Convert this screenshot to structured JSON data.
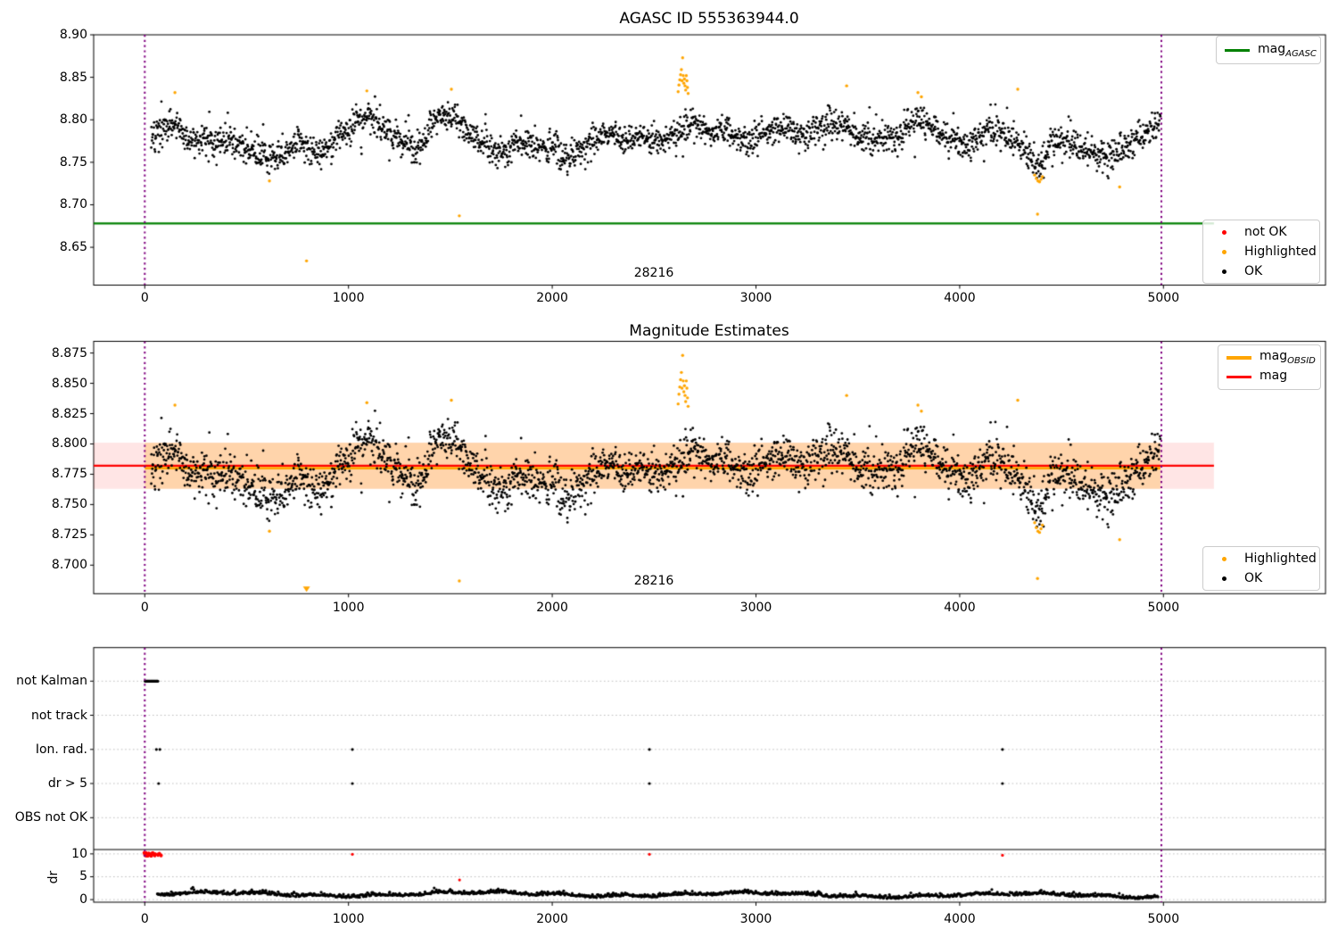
{
  "colors": {
    "ok": "#000000",
    "highlighted": "#ffa500",
    "not_ok": "#ff0000",
    "mag_agasc": "#008000",
    "mag": "#ff0000",
    "mag_obsid": "#ffa500",
    "obsid_boundary": "#800080",
    "band_mag": "rgba(255,0,0,0.10)",
    "band_obsid": "rgba(255,165,0,0.25)",
    "grid": "#c0c0c0",
    "spine": "#000000"
  },
  "chart_data": [
    {
      "type": "scatter",
      "title": "AGASC ID 555363944.0",
      "xlim": [
        -251,
        5791
      ],
      "ylim": [
        8.605,
        8.9
      ],
      "xticks": [
        "0",
        "1000",
        "2000",
        "3000",
        "4000",
        "5000"
      ],
      "yticks": [
        "8.90",
        "8.85",
        "8.80",
        "8.75",
        "8.70",
        "8.65"
      ],
      "mag_agasc_line": {
        "y": 8.678,
        "x_start": -251,
        "x_end": 5248
      },
      "obsid_boundaries": [
        0,
        4990
      ],
      "obsid_label": {
        "text": "28216",
        "x": 2500,
        "y": 8.62
      },
      "ok_series_model": {
        "n": 2600,
        "x_start": 30,
        "x_end": 4985,
        "noise_sd": 0.0085,
        "seed": 12345,
        "clamp": [
          8.727,
          8.8345
        ],
        "baseline": [
          [
            30,
            8.78
          ],
          [
            80,
            8.786
          ],
          [
            120,
            8.795
          ],
          [
            160,
            8.79
          ],
          [
            200,
            8.78
          ],
          [
            260,
            8.777
          ],
          [
            320,
            8.776
          ],
          [
            380,
            8.775
          ],
          [
            440,
            8.773
          ],
          [
            500,
            8.77
          ],
          [
            560,
            8.758
          ],
          [
            620,
            8.752
          ],
          [
            680,
            8.758
          ],
          [
            720,
            8.768
          ],
          [
            760,
            8.778
          ],
          [
            800,
            8.77
          ],
          [
            840,
            8.76
          ],
          [
            880,
            8.763
          ],
          [
            920,
            8.772
          ],
          [
            960,
            8.778
          ],
          [
            1000,
            8.788
          ],
          [
            1040,
            8.8
          ],
          [
            1080,
            8.805
          ],
          [
            1120,
            8.802
          ],
          [
            1160,
            8.794
          ],
          [
            1200,
            8.783
          ],
          [
            1240,
            8.779
          ],
          [
            1280,
            8.772
          ],
          [
            1320,
            8.764
          ],
          [
            1360,
            8.768
          ],
          [
            1400,
            8.795
          ],
          [
            1440,
            8.803
          ],
          [
            1480,
            8.806
          ],
          [
            1520,
            8.801
          ],
          [
            1560,
            8.792
          ],
          [
            1600,
            8.786
          ],
          [
            1640,
            8.778
          ],
          [
            1680,
            8.77
          ],
          [
            1720,
            8.764
          ],
          [
            1760,
            8.763
          ],
          [
            1800,
            8.768
          ],
          [
            1840,
            8.774
          ],
          [
            1880,
            8.774
          ],
          [
            1920,
            8.77
          ],
          [
            1960,
            8.764
          ],
          [
            2000,
            8.772
          ],
          [
            2040,
            8.76
          ],
          [
            2080,
            8.756
          ],
          [
            2120,
            8.763
          ],
          [
            2160,
            8.772
          ],
          [
            2200,
            8.778
          ],
          [
            2240,
            8.782
          ],
          [
            2280,
            8.784
          ],
          [
            2320,
            8.78
          ],
          [
            2360,
            8.776
          ],
          [
            2400,
            8.778
          ],
          [
            2440,
            8.781
          ],
          [
            2480,
            8.779
          ],
          [
            2520,
            8.775
          ],
          [
            2560,
            8.778
          ],
          [
            2600,
            8.782
          ],
          [
            2640,
            8.79
          ],
          [
            2680,
            8.797
          ],
          [
            2720,
            8.79
          ],
          [
            2760,
            8.784
          ],
          [
            2800,
            8.786
          ],
          [
            2840,
            8.789
          ],
          [
            2880,
            8.784
          ],
          [
            2920,
            8.778
          ],
          [
            2960,
            8.774
          ],
          [
            3000,
            8.778
          ],
          [
            3040,
            8.782
          ],
          [
            3080,
            8.788
          ],
          [
            3120,
            8.793
          ],
          [
            3160,
            8.79
          ],
          [
            3200,
            8.785
          ],
          [
            3240,
            8.786
          ],
          [
            3280,
            8.789
          ],
          [
            3320,
            8.792
          ],
          [
            3360,
            8.795
          ],
          [
            3400,
            8.798
          ],
          [
            3440,
            8.793
          ],
          [
            3480,
            8.788
          ],
          [
            3520,
            8.782
          ],
          [
            3560,
            8.779
          ],
          [
            3600,
            8.78
          ],
          [
            3640,
            8.783
          ],
          [
            3680,
            8.78
          ],
          [
            3720,
            8.786
          ],
          [
            3760,
            8.795
          ],
          [
            3800,
            8.8
          ],
          [
            3840,
            8.795
          ],
          [
            3880,
            8.787
          ],
          [
            3920,
            8.781
          ],
          [
            3960,
            8.777
          ],
          [
            4000,
            8.773
          ],
          [
            4040,
            8.77
          ],
          [
            4080,
            8.778
          ],
          [
            4120,
            8.786
          ],
          [
            4160,
            8.792
          ],
          [
            4200,
            8.788
          ],
          [
            4240,
            8.78
          ],
          [
            4280,
            8.772
          ],
          [
            4320,
            8.76
          ],
          [
            4360,
            8.748
          ],
          [
            4400,
            8.745
          ],
          [
            4440,
            8.765
          ],
          [
            4480,
            8.776
          ],
          [
            4520,
            8.774
          ],
          [
            4560,
            8.77
          ],
          [
            4600,
            8.766
          ],
          [
            4640,
            8.762
          ],
          [
            4680,
            8.758
          ],
          [
            4720,
            8.755
          ],
          [
            4760,
            8.76
          ],
          [
            4800,
            8.766
          ],
          [
            4840,
            8.773
          ],
          [
            4880,
            8.778
          ],
          [
            4920,
            8.785
          ],
          [
            4960,
            8.795
          ],
          [
            4985,
            8.8
          ]
        ]
      },
      "highlighted": [
        [
          148,
          8.832
        ],
        [
          612,
          8.728
        ],
        [
          794,
          8.634
        ],
        [
          1090,
          8.834
        ],
        [
          1505,
          8.836
        ],
        [
          1544,
          8.687
        ],
        [
          2618,
          8.833
        ],
        [
          2622,
          8.841
        ],
        [
          2626,
          8.847
        ],
        [
          2630,
          8.853
        ],
        [
          2634,
          8.859
        ],
        [
          2637,
          8.846
        ],
        [
          2640,
          8.873
        ],
        [
          2643,
          8.852
        ],
        [
          2646,
          8.843
        ],
        [
          2649,
          8.848
        ],
        [
          2652,
          8.84
        ],
        [
          2655,
          8.835
        ],
        [
          2658,
          8.852
        ],
        [
          2661,
          8.846
        ],
        [
          2664,
          8.838
        ],
        [
          2667,
          8.831
        ],
        [
          3445,
          8.84
        ],
        [
          3795,
          8.832
        ],
        [
          3812,
          8.827
        ],
        [
          4285,
          8.836
        ],
        [
          4368,
          8.735
        ],
        [
          4376,
          8.731
        ],
        [
          4384,
          8.728
        ],
        [
          4392,
          8.727
        ],
        [
          4399,
          8.73
        ],
        [
          4406,
          8.733
        ],
        [
          4382,
          8.689
        ],
        [
          4785,
          8.721
        ]
      ],
      "legend_lines": [
        {
          "label": "mag",
          "sub": "AGASC"
        }
      ],
      "legend_markers": [
        {
          "label": "not OK"
        },
        {
          "label": "Highlighted"
        },
        {
          "label": "OK"
        }
      ]
    },
    {
      "type": "scatter",
      "title": "Magnitude Estimates",
      "xlim": [
        -251,
        5791
      ],
      "ylim": [
        8.676,
        8.885
      ],
      "xticks": [
        "0",
        "1000",
        "2000",
        "3000",
        "4000",
        "5000"
      ],
      "yticks": [
        "8.875",
        "8.850",
        "8.825",
        "8.800",
        "8.775",
        "8.750",
        "8.725",
        "8.700"
      ],
      "mag_line": {
        "y": 8.782,
        "x_start": -251,
        "x_end": 5248
      },
      "mag_band": {
        "y_low": 8.763,
        "y_high": 8.801,
        "x_start": -251,
        "x_end": 5248
      },
      "mag_obsid_line": {
        "y": 8.78,
        "x_start": 0,
        "x_end": 4985
      },
      "mag_obsid_band": {
        "y_low": 8.763,
        "y_high": 8.801,
        "x_start": 0,
        "x_end": 4985
      },
      "obsid_boundaries": [
        0,
        4990
      ],
      "obsid_label": {
        "text": "28216",
        "x": 2500,
        "y": 8.687
      },
      "ok_series_model": {
        "same_as_panel": 0
      },
      "highlighted": [
        [
          148,
          8.832
        ],
        [
          612,
          8.728
        ],
        [
          1090,
          8.834
        ],
        [
          1505,
          8.836
        ],
        [
          1544,
          8.687
        ],
        [
          2618,
          8.833
        ],
        [
          2622,
          8.841
        ],
        [
          2626,
          8.847
        ],
        [
          2630,
          8.853
        ],
        [
          2634,
          8.859
        ],
        [
          2637,
          8.846
        ],
        [
          2640,
          8.873
        ],
        [
          2643,
          8.852
        ],
        [
          2646,
          8.843
        ],
        [
          2649,
          8.848
        ],
        [
          2652,
          8.84
        ],
        [
          2655,
          8.835
        ],
        [
          2658,
          8.852
        ],
        [
          2661,
          8.846
        ],
        [
          2664,
          8.838
        ],
        [
          2667,
          8.831
        ],
        [
          3445,
          8.84
        ],
        [
          3795,
          8.832
        ],
        [
          3812,
          8.827
        ],
        [
          4285,
          8.836
        ],
        [
          4368,
          8.735
        ],
        [
          4376,
          8.731
        ],
        [
          4384,
          8.728
        ],
        [
          4392,
          8.727
        ],
        [
          4399,
          8.73
        ],
        [
          4406,
          8.733
        ],
        [
          4382,
          8.689
        ],
        [
          4785,
          8.721
        ]
      ],
      "below_range_markers": [
        {
          "x": 794,
          "value": 8.634,
          "symbol": "triangle-down"
        }
      ],
      "legend_lines": [
        {
          "label": "mag",
          "sub": "OBSID"
        },
        {
          "label": "mag",
          "sub": ""
        }
      ],
      "legend_markers": [
        {
          "label": "Highlighted"
        },
        {
          "label": "OK"
        }
      ]
    },
    {
      "type": "scatter",
      "title": "",
      "xlim": [
        -251,
        5791
      ],
      "xticks": [
        "0",
        "1000",
        "2000",
        "3000",
        "4000",
        "5000"
      ],
      "categories": [
        "not Kalman",
        "not track",
        "Ion. rad.",
        "dr > 5",
        "OBS not OK"
      ],
      "dr_axis": {
        "label": "dr",
        "ticks": [
          "10",
          "5",
          "0"
        ]
      },
      "flag_marks": [
        {
          "category": "not Kalman",
          "runs": [
            [
              2,
              64
            ]
          ],
          "singles": []
        },
        {
          "category": "not track",
          "runs": [],
          "singles": []
        },
        {
          "category": "Ion. rad.",
          "runs": [],
          "singles": [
            57,
            74,
            1019,
            2477,
            4210
          ]
        },
        {
          "category": "dr > 5",
          "runs": [],
          "singles": [
            68,
            1019,
            2477,
            4210
          ]
        },
        {
          "category": "OBS not OK",
          "runs": [],
          "singles": []
        }
      ],
      "dr_not_ok": {
        "cluster": {
          "x_start": -4,
          "x_end": 82,
          "n": 60,
          "dr_low": 9.5,
          "dr_high": 10.35,
          "seed": 77
        },
        "singles": [
          [
            1019,
            9.9
          ],
          [
            2477,
            9.9
          ],
          [
            4210,
            9.7
          ],
          [
            1545,
            4.3
          ]
        ]
      },
      "dr_trace_model": {
        "n": 1300,
        "x_start": 60,
        "x_end": 4975,
        "base": 0.85,
        "noise_sd": 0.35,
        "clamp": [
          0.12,
          2.75
        ],
        "seed": 11
      },
      "dr_divider_line": {
        "dr": 10.95
      },
      "obsid_boundaries": [
        0,
        4990
      ],
      "grid": "dotted"
    }
  ]
}
